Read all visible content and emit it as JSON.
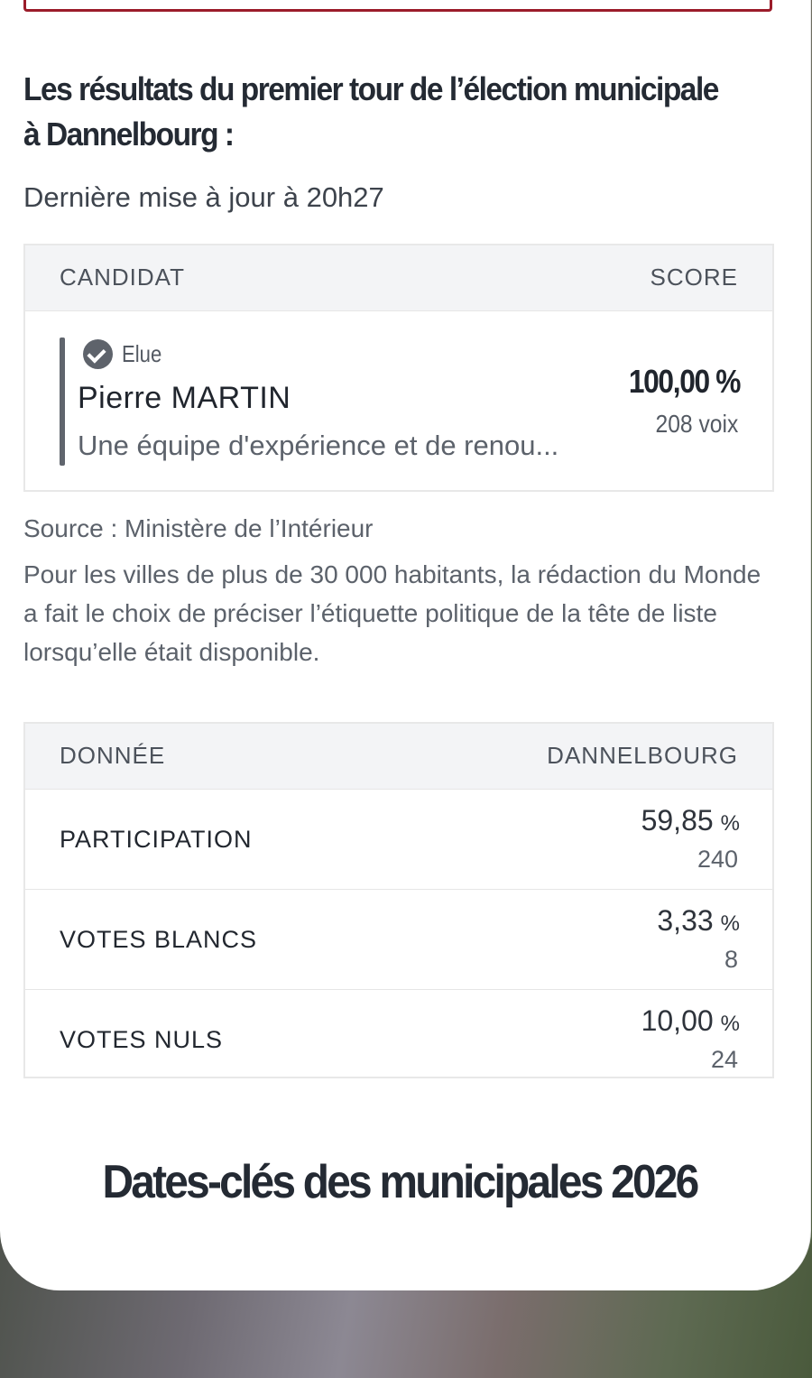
{
  "header": {
    "title": "Les résultats du premier tour de l’élection municipale à Dannelbourg :",
    "updated": "Dernière mise à jour à 20h27"
  },
  "results_table": {
    "col_candidate": "CANDIDAT",
    "col_score": "SCORE",
    "candidate": {
      "status": "Elue",
      "status_icon": "check-circle-icon",
      "name": "Pierre MARTIN",
      "list": "Une équipe d'expérience et de renou...",
      "score_pct": "100,00 %",
      "votes": "208 voix"
    }
  },
  "source": "Source : Ministère de l’Intérieur",
  "note": "Pour les villes de plus de 30 000 habitants, la rédaction du Monde a fait le choix de préciser l’étiquette politique de la tête de liste lorsqu’elle était disponible.",
  "data_table": {
    "col_data": "DONNÉE",
    "col_city": "DANNELBOURG",
    "rows": [
      {
        "label": "PARTICIPATION",
        "value": "59,85",
        "unit": "%",
        "count": "240"
      },
      {
        "label": "VOTES BLANCS",
        "value": "3,33",
        "unit": "%",
        "count": "8"
      },
      {
        "label": "VOTES NULS",
        "value": "10,00",
        "unit": "%",
        "count": "24"
      }
    ]
  },
  "section_title": "Dates-clés des municipales 2026",
  "colors": {
    "accent_border": "#9b1c2a",
    "text_dark": "#242a33",
    "header_bg": "#f3f4f6"
  }
}
